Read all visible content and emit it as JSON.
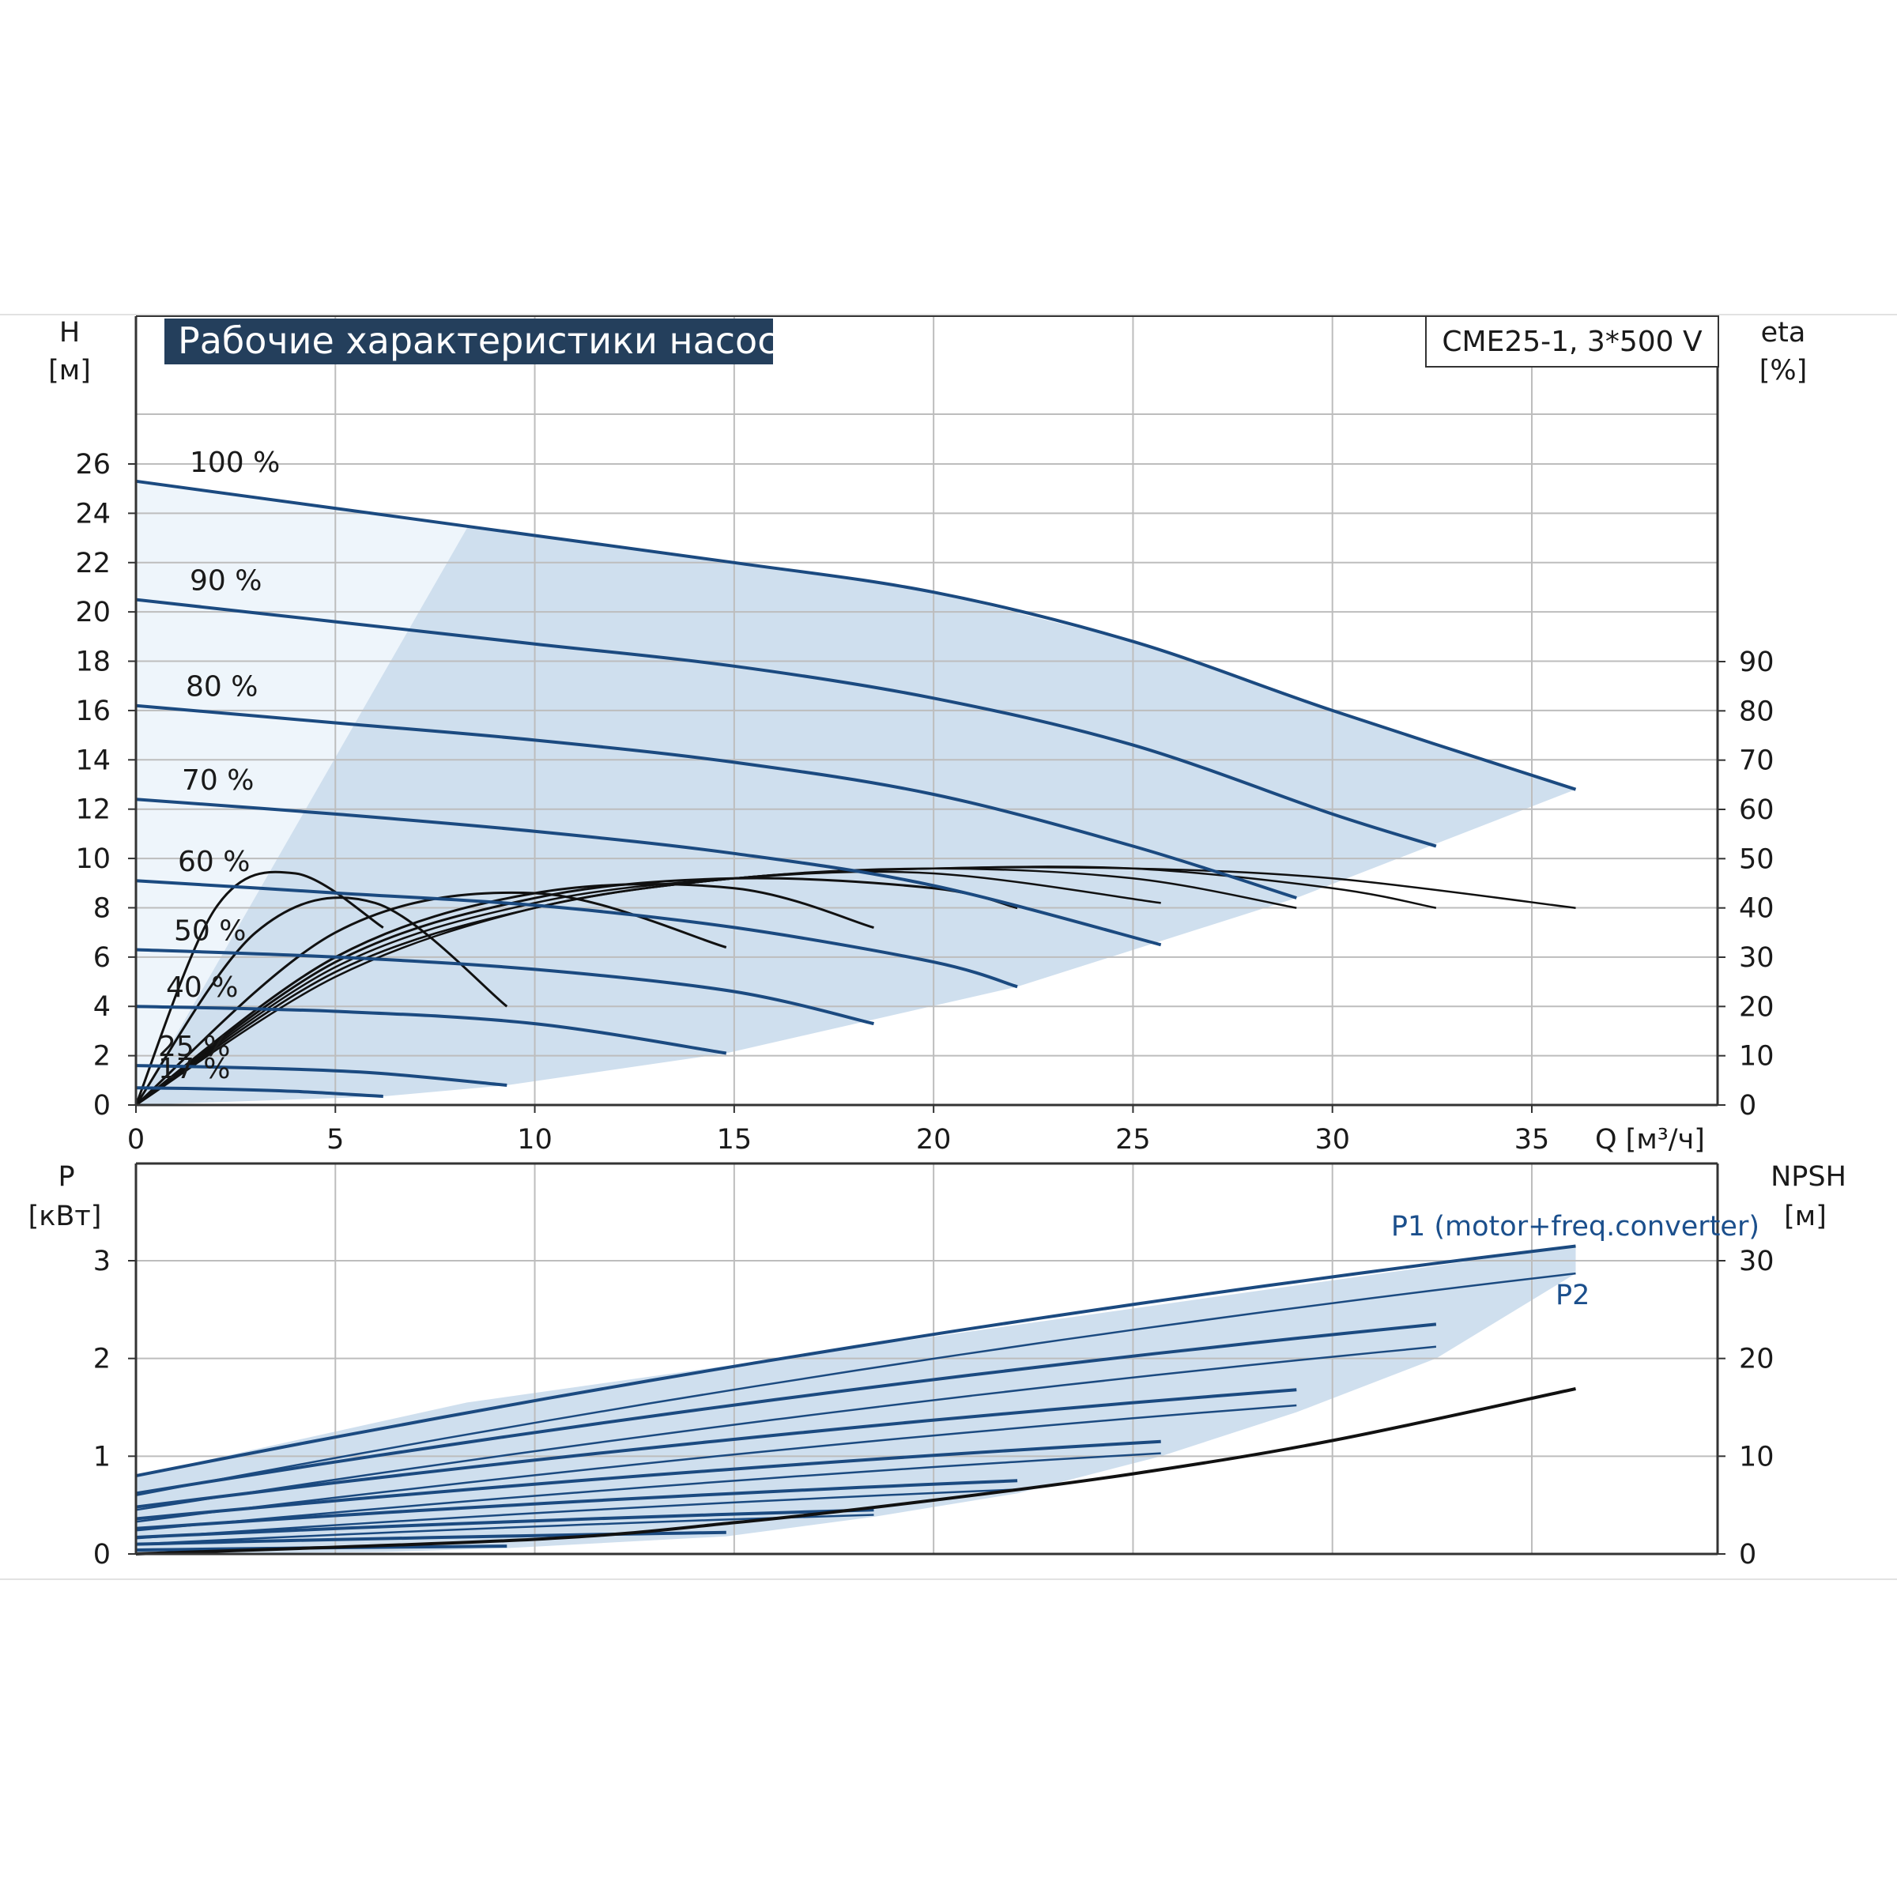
{
  "chart_data": [
    {
      "type": "line",
      "title": "Рабочие характеристики насоса",
      "model": "CME25-1, 3*500 V",
      "ylabel": "H",
      "yunit": "[м]",
      "y2label": "eta",
      "y2unit": "[%]",
      "xlabel": "Q [м³/ч]",
      "xlim": [
        0,
        40
      ],
      "ylim": [
        0,
        26
      ],
      "y2lim": [
        0,
        90
      ],
      "x_ticks": [
        "0",
        "5",
        "10",
        "15",
        "20",
        "25",
        "30",
        "35"
      ],
      "y_ticks": [
        "0",
        "2",
        "4",
        "6",
        "8",
        "10",
        "12",
        "14",
        "16",
        "18",
        "20",
        "22",
        "24",
        "26"
      ],
      "y2_ticks": [
        "0",
        "10",
        "20",
        "30",
        "40",
        "50",
        "60",
        "70",
        "80",
        "90"
      ],
      "grid": true,
      "speed_labels": [
        "100 %",
        "90 %",
        "80 %",
        "70 %",
        "60 %",
        "50 %",
        "40 %",
        "25 %",
        "17 %"
      ],
      "head_curves": [
        {
          "speed": "100 %",
          "x": [
            0,
            5,
            10,
            15,
            20,
            25,
            30,
            36.1
          ],
          "y": [
            25.3,
            24.2,
            23.1,
            22.0,
            20.8,
            18.8,
            16.0,
            12.8
          ]
        },
        {
          "speed": "90 %",
          "x": [
            0,
            5,
            10,
            15,
            20,
            25,
            30,
            32.6
          ],
          "y": [
            20.5,
            19.6,
            18.7,
            17.8,
            16.5,
            14.6,
            11.8,
            10.5
          ]
        },
        {
          "speed": "80 %",
          "x": [
            0,
            5,
            10,
            15,
            20,
            25,
            29.1
          ],
          "y": [
            16.2,
            15.5,
            14.8,
            13.9,
            12.6,
            10.5,
            8.4
          ]
        },
        {
          "speed": "70 %",
          "x": [
            0,
            5,
            10,
            15,
            20,
            25.7
          ],
          "y": [
            12.4,
            11.8,
            11.1,
            10.2,
            8.9,
            6.5
          ]
        },
        {
          "speed": "60 %",
          "x": [
            0,
            5,
            10,
            15,
            20,
            22.1
          ],
          "y": [
            9.1,
            8.6,
            8.1,
            7.2,
            5.8,
            4.8
          ]
        },
        {
          "speed": "50 %",
          "x": [
            0,
            5,
            10,
            15,
            18.5
          ],
          "y": [
            6.3,
            6.0,
            5.5,
            4.6,
            3.3
          ]
        },
        {
          "speed": "40 %",
          "x": [
            0,
            5,
            10,
            14.8
          ],
          "y": [
            4.0,
            3.8,
            3.3,
            2.1
          ]
        },
        {
          "speed": "25 %",
          "x": [
            0,
            3,
            6,
            9.3
          ],
          "y": [
            1.6,
            1.5,
            1.3,
            0.8
          ]
        },
        {
          "speed": "17 %",
          "x": [
            0,
            2,
            4,
            6.2
          ],
          "y": [
            0.7,
            0.65,
            0.55,
            0.35
          ]
        }
      ],
      "efficiency_curves": [
        {
          "speed": "100 %",
          "x": [
            0,
            5,
            10,
            15,
            20,
            25,
            30,
            36.1
          ],
          "y": [
            0,
            26,
            40,
            46,
            48,
            48,
            46,
            40
          ]
        },
        {
          "speed": "90 %",
          "x": [
            0,
            5,
            10,
            15,
            20,
            25,
            30,
            32.6
          ],
          "y": [
            0,
            27,
            40,
            46,
            48,
            48,
            44,
            40
          ]
        },
        {
          "speed": "80 %",
          "x": [
            0,
            5,
            10,
            15,
            20,
            25,
            29.1
          ],
          "y": [
            0,
            27,
            40,
            46,
            48,
            46,
            40
          ]
        },
        {
          "speed": "70 %",
          "x": [
            0,
            5,
            10,
            15,
            20,
            25.7
          ],
          "y": [
            0,
            28,
            41,
            46,
            47,
            41
          ]
        },
        {
          "speed": "60 %",
          "x": [
            0,
            5,
            10,
            15,
            20,
            22.1
          ],
          "y": [
            0,
            29,
            42,
            46,
            44,
            40
          ]
        },
        {
          "speed": "50 %",
          "x": [
            0,
            5,
            10,
            15,
            18.5
          ],
          "y": [
            0,
            30,
            43,
            44,
            36
          ]
        },
        {
          "speed": "40 %",
          "x": [
            0,
            5,
            10,
            14.8
          ],
          "y": [
            0,
            35,
            43,
            32
          ]
        },
        {
          "speed": "25 %",
          "x": [
            0,
            3,
            6,
            9.3
          ],
          "y": [
            0,
            35,
            41,
            20
          ]
        },
        {
          "speed": "17 %",
          "x": [
            0,
            2,
            4,
            6.2
          ],
          "y": [
            0,
            40,
            47,
            36
          ]
        }
      ],
      "operating_range": {
        "x": [
          0,
          8.3,
          36.1,
          29.1,
          22.1,
          14.8,
          9.3,
          6.2,
          0
        ],
        "y": [
          25.3,
          23.4,
          12.8,
          8.4,
          4.8,
          2.1,
          0.8,
          0.35,
          0
        ]
      }
    },
    {
      "type": "line",
      "ylabel": "P",
      "yunit": "[кВт]",
      "y2label": "NPSH",
      "y2unit": "[м]",
      "xlim": [
        0,
        40
      ],
      "ylim": [
        0,
        4
      ],
      "y2lim": [
        0,
        40
      ],
      "y_ticks": [
        "0",
        "1",
        "2",
        "3"
      ],
      "y2_ticks": [
        "0",
        "10",
        "20",
        "30"
      ],
      "grid": true,
      "p1_label": "P1 (motor+freq.converter)",
      "p2_label": "P2",
      "p1_curves": [
        {
          "x": [
            0,
            36.1
          ],
          "y": [
            0.8,
            3.15
          ]
        },
        {
          "x": [
            0,
            32.6
          ],
          "y": [
            0.62,
            2.35
          ]
        },
        {
          "x": [
            0,
            29.1
          ],
          "y": [
            0.48,
            1.68
          ]
        },
        {
          "x": [
            0,
            25.7
          ],
          "y": [
            0.36,
            1.15
          ]
        },
        {
          "x": [
            0,
            22.1
          ],
          "y": [
            0.26,
            0.75
          ]
        },
        {
          "x": [
            0,
            18.5
          ],
          "y": [
            0.17,
            0.45
          ]
        },
        {
          "x": [
            0,
            14.8
          ],
          "y": [
            0.1,
            0.22
          ]
        },
        {
          "x": [
            0,
            9.3
          ],
          "y": [
            0.04,
            0.08
          ]
        }
      ],
      "p2_curves": [
        {
          "x": [
            0,
            36.1
          ],
          "y": [
            0.6,
            2.87
          ]
        },
        {
          "x": [
            0,
            32.6
          ],
          "y": [
            0.45,
            2.12
          ]
        },
        {
          "x": [
            0,
            29.1
          ],
          "y": [
            0.33,
            1.52
          ]
        },
        {
          "x": [
            0,
            25.7
          ],
          "y": [
            0.24,
            1.03
          ]
        },
        {
          "x": [
            0,
            22.1
          ],
          "y": [
            0.16,
            0.66
          ]
        },
        {
          "x": [
            0,
            18.5
          ],
          "y": [
            0.1,
            0.4
          ]
        }
      ],
      "npsh_curve": {
        "x": [
          0,
          10,
          15,
          20,
          25,
          30,
          36.1
        ],
        "y": [
          0,
          1.5,
          3.2,
          5.5,
          8.2,
          11.6,
          16.9
        ]
      }
    }
  ]
}
